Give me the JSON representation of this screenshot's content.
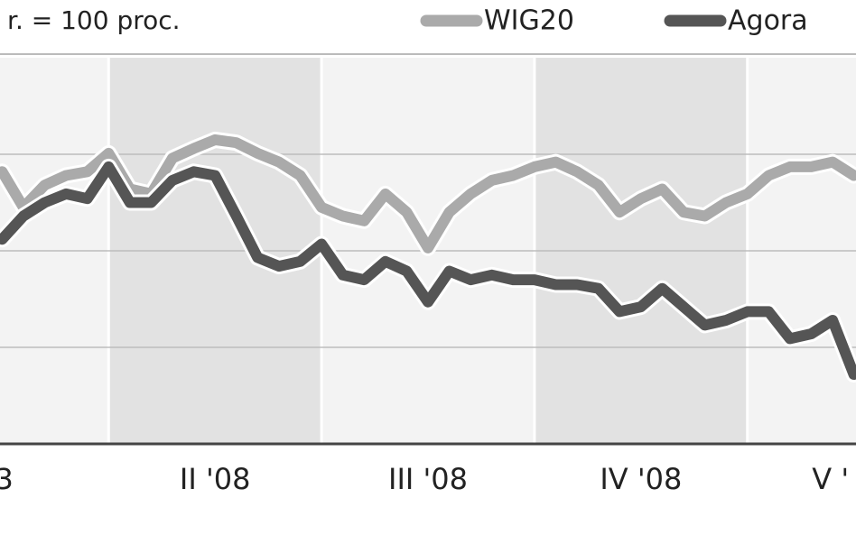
{
  "chart_data": {
    "type": "line",
    "subtitle": "r. = 100 proc.",
    "x": [
      1.5,
      1.6,
      1.7,
      1.8,
      1.9,
      2.0,
      2.1,
      2.2,
      2.3,
      2.4,
      2.5,
      2.6,
      2.7,
      2.8,
      2.9,
      3.0,
      3.1,
      3.2,
      3.3,
      3.4,
      3.5,
      3.6,
      3.7,
      3.8,
      3.9,
      4.0,
      4.1,
      4.2,
      4.3,
      4.4,
      4.5,
      4.6,
      4.7,
      4.8,
      4.9,
      5.0,
      5.1,
      5.2,
      5.3,
      5.4,
      5.5
    ],
    "series": [
      {
        "name": "WIG20",
        "color": "#aaaaaa",
        "values": [
          98.2,
          94.5,
          96.8,
          97.8,
          98.2,
          100.1,
          96.4,
          95.9,
          99.6,
          100.6,
          101.5,
          101.2,
          100.1,
          99.2,
          97.8,
          94.5,
          93.6,
          93.1,
          95.9,
          94.0,
          90.3,
          94.0,
          95.9,
          97.3,
          97.8,
          98.7,
          99.2,
          98.2,
          96.8,
          94.0,
          95.4,
          96.4,
          94.0,
          93.6,
          95.0,
          95.9,
          97.8,
          98.7,
          98.7,
          99.2,
          97.8
        ]
      },
      {
        "name": "Agora",
        "color": "#555555",
        "values": [
          91.2,
          93.6,
          95.0,
          95.9,
          95.4,
          98.7,
          95.0,
          95.0,
          97.3,
          98.2,
          97.8,
          93.6,
          89.3,
          88.4,
          88.9,
          90.7,
          87.5,
          87.0,
          88.9,
          87.9,
          84.7,
          87.9,
          87.0,
          87.5,
          87.0,
          87.0,
          86.5,
          86.5,
          86.1,
          83.7,
          84.2,
          86.1,
          84.2,
          82.3,
          82.8,
          83.7,
          83.7,
          80.9,
          81.4,
          82.8,
          77.2
        ]
      }
    ],
    "xlim": [
      1.49,
      5.51
    ],
    "xticks": [
      {
        "value": 1.51,
        "label": "3"
      },
      {
        "value": 2.5,
        "label": "II '08"
      },
      {
        "value": 3.5,
        "label": "III '08"
      },
      {
        "value": 4.5,
        "label": "IV '08"
      },
      {
        "value": 5.39,
        "label": "V '"
      }
    ],
    "ylim": [
      70,
      110
    ],
    "gridlines": [
      80,
      90,
      100
    ],
    "grid": true
  }
}
